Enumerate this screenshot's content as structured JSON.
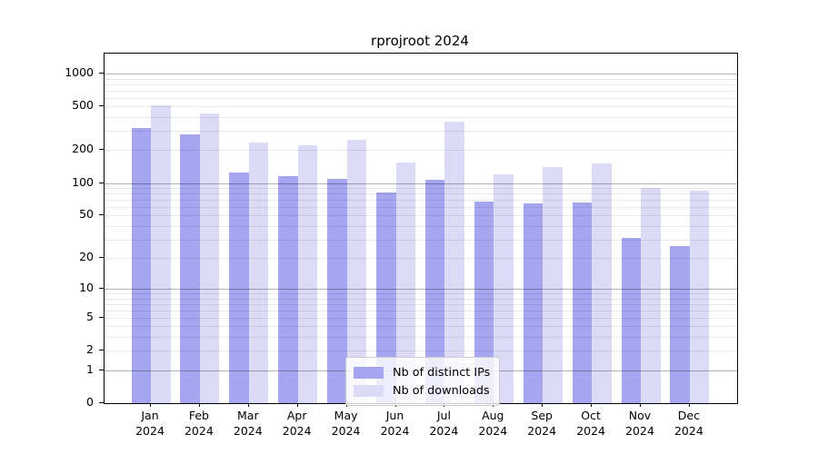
{
  "title": "rprojroot 2024",
  "colors": {
    "ips_bar": "#a5a5f0",
    "downloads_bar": "#dbdbf8",
    "grid_major": "rgba(0,0,0,0.30)",
    "grid_minor": "rgba(0,0,0,0.09)",
    "axis": "#000000",
    "legend_border": "#cccccc"
  },
  "chart_data": {
    "type": "bar",
    "title": "rprojroot 2024",
    "year_label": "2024",
    "categories": [
      "Jan",
      "Feb",
      "Mar",
      "Apr",
      "May",
      "Jun",
      "Jul",
      "Aug",
      "Sep",
      "Oct",
      "Nov",
      "Dec"
    ],
    "series": [
      {
        "name": "Nb of distinct IPs",
        "color": "#a5a5f0",
        "values": [
          320,
          280,
          125,
          115,
          110,
          81,
          106,
          68,
          65,
          66,
          31,
          26
        ]
      },
      {
        "name": "Nb of downloads",
        "color": "#dbdbf8",
        "values": [
          515,
          435,
          235,
          220,
          250,
          153,
          365,
          119,
          141,
          151,
          90,
          85
        ]
      }
    ],
    "yticks": [
      0,
      1,
      2,
      5,
      10,
      20,
      50,
      100,
      200,
      500,
      1000
    ],
    "scale": "log10(1+x)",
    "ylim": [
      0,
      1520
    ],
    "grid": true,
    "legend_position": "lower center",
    "xlabel": "",
    "ylabel": ""
  }
}
